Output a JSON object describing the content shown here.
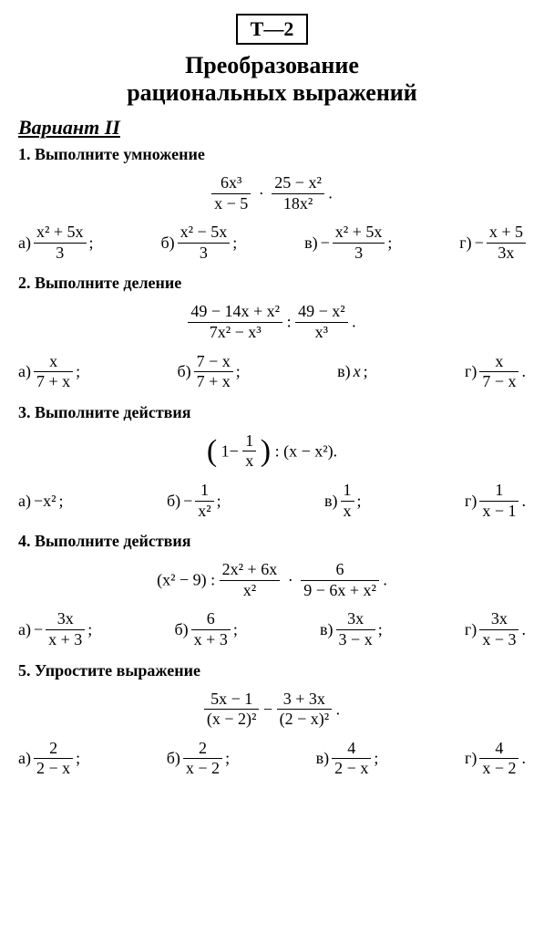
{
  "colors": {
    "text": "#000000",
    "background": "#ffffff",
    "border": "#000000"
  },
  "fonts": {
    "base": "Times New Roman, serif",
    "base_size": 18,
    "title_size": 26,
    "variant_size": 22,
    "badge_size": 22
  },
  "badge": "Т—2",
  "title_line1": "Преобразование",
  "title_line2": "рациональных выражений",
  "variant": "Вариант II",
  "problems": [
    {
      "num": "1.",
      "text": "Выполните умножение",
      "expr": {
        "type": "product",
        "f1": {
          "num": "6x³",
          "den": "x − 5"
        },
        "f2": {
          "num": "25 − x²",
          "den": "18x²"
        }
      },
      "answers": {
        "a": {
          "label": "а)",
          "num": "x² + 5x",
          "den": "3",
          "sign": ""
        },
        "b": {
          "label": "б)",
          "num": "x² − 5x",
          "den": "3",
          "sign": ""
        },
        "v": {
          "label": "в)",
          "num": "x² + 5x",
          "den": "3",
          "sign": "−"
        },
        "g": {
          "label": "г)",
          "num": "x + 5",
          "den": "3x",
          "sign": "−"
        }
      }
    },
    {
      "num": "2.",
      "text": "Выполните деление",
      "expr": {
        "type": "division",
        "f1": {
          "num": "49 − 14x + x²",
          "den": "7x² − x³"
        },
        "f2": {
          "num": "49 − x²",
          "den": "x³"
        }
      },
      "answers": {
        "a": {
          "label": "а)",
          "num": "x",
          "den": "7 + x"
        },
        "b": {
          "label": "б)",
          "num": "7 − x",
          "den": "7 + x"
        },
        "v": {
          "label": "в)",
          "plain": "x"
        },
        "g": {
          "label": "г)",
          "num": "x",
          "den": "7 − x"
        }
      }
    },
    {
      "num": "3.",
      "text": "Выполните действия",
      "expr": {
        "type": "paren_div",
        "inner_left": "1−",
        "inner_frac": {
          "num": "1",
          "den": "x"
        },
        "right": "(x − x²)."
      },
      "answers": {
        "a": {
          "label": "а)",
          "plain": "−x²"
        },
        "b": {
          "label": "б)",
          "num": "1",
          "den": "x²",
          "sign": "−"
        },
        "v": {
          "label": "в)",
          "num": "1",
          "den": "x"
        },
        "g": {
          "label": "г)",
          "num": "1",
          "den": "x − 1"
        }
      }
    },
    {
      "num": "4.",
      "text": "Выполните действия",
      "expr": {
        "type": "p4",
        "left": "(x² − 9) :",
        "f1": {
          "num": "2x² + 6x",
          "den": "x²"
        },
        "f2": {
          "num": "6",
          "den": "9 − 6x + x²"
        }
      },
      "answers": {
        "a": {
          "label": "а)",
          "num": "3x",
          "den": "x + 3",
          "sign": "−"
        },
        "b": {
          "label": "б)",
          "num": "6",
          "den": "x + 3"
        },
        "v": {
          "label": "в)",
          "num": "3x",
          "den": "3 − x"
        },
        "g": {
          "label": "г)",
          "num": "3x",
          "den": "x − 3"
        }
      }
    },
    {
      "num": "5.",
      "text": "Упростите выражение",
      "expr": {
        "type": "subtraction",
        "f1": {
          "num": "5x − 1",
          "den": "(x − 2)²"
        },
        "f2": {
          "num": "3 + 3x",
          "den": "(2 − x)²"
        }
      },
      "answers": {
        "a": {
          "label": "а)",
          "num": "2",
          "den": "2 − x"
        },
        "b": {
          "label": "б)",
          "num": "2",
          "den": "x − 2"
        },
        "v": {
          "label": "в)",
          "num": "4",
          "den": "2 − x"
        },
        "g": {
          "label": "г)",
          "num": "4",
          "den": "x − 2"
        }
      }
    }
  ]
}
